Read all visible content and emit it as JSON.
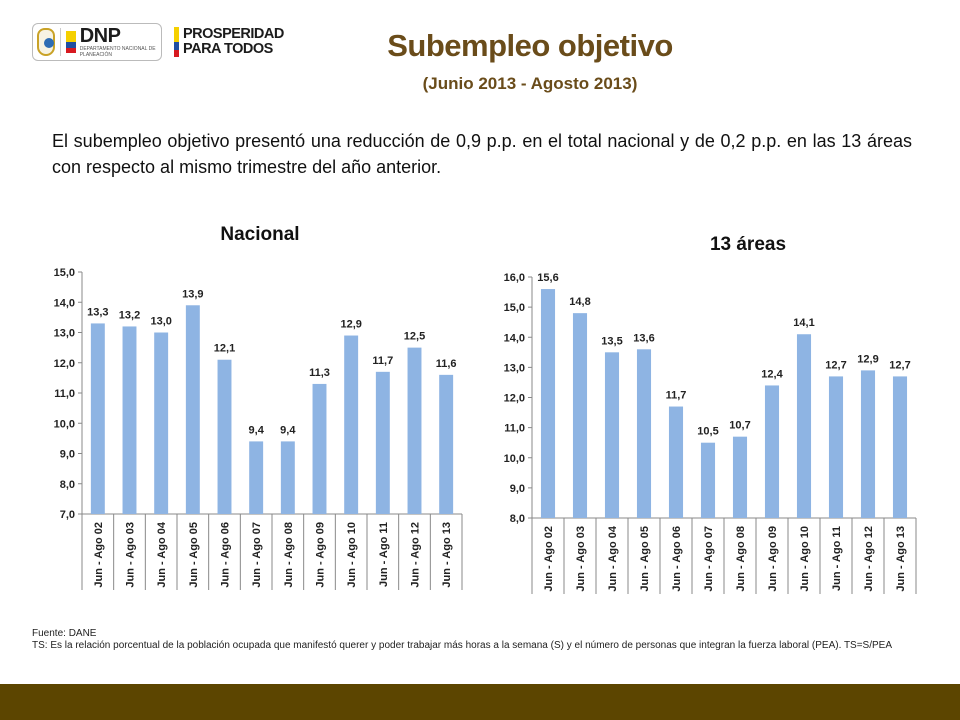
{
  "header": {
    "logo_main": "DNP",
    "logo_sub": "DEPARTAMENTO NACIONAL DE PLANEACIÓN",
    "slogan_line1": "PROSPERIDAD",
    "slogan_line2": "PARA TODOS",
    "title": "Subempleo objetivo",
    "subtitle": "(Junio 2013 - Agosto 2013)"
  },
  "description": "El subempleo objetivo presentó una reducción de 0,9 p.p. en el total nacional y de 0,2 p.p. en las 13 áreas con respecto al mismo trimestre del año anterior.",
  "footer": {
    "source": "Fuente: DANE",
    "note": "TS: Es la relación porcentual de la población ocupada que manifestó querer y poder trabajar más horas a la semana (S) y el número de personas que integran la fuerza laboral (PEA). TS=S/PEA"
  },
  "colors": {
    "title": "#6a4c1a",
    "bar": "#8eb4e3",
    "bottom_bar": "#5c4500"
  },
  "chart_data": [
    {
      "type": "bar",
      "title": "Nacional",
      "categories": [
        "Jun - Ago 02",
        "Jun - Ago 03",
        "Jun - Ago 04",
        "Jun - Ago 05",
        "Jun - Ago 06",
        "Jun - Ago 07",
        "Jun - Ago 08",
        "Jun - Ago 09",
        "Jun - Ago 10",
        "Jun - Ago 11",
        "Jun - Ago 12",
        "Jun - Ago 13"
      ],
      "values": [
        13.3,
        13.2,
        13.0,
        13.9,
        12.1,
        9.4,
        9.4,
        11.3,
        12.9,
        11.7,
        12.5,
        11.6
      ],
      "labels": [
        "13,3",
        "13,2",
        "13,0",
        "13,9",
        "12,1",
        "9,4",
        "9,4",
        "11,3",
        "12,9",
        "11,7",
        "12,5",
        "11,6"
      ],
      "ylim": [
        7.0,
        15.0
      ],
      "yticks": [
        "7,0",
        "8,0",
        "9,0",
        "10,0",
        "11,0",
        "12,0",
        "13,0",
        "14,0",
        "15,0"
      ],
      "grid": false
    },
    {
      "type": "bar",
      "title": "13 áreas",
      "categories": [
        "Jun - Ago 02",
        "Jun - Ago 03",
        "Jun - Ago 04",
        "Jun - Ago 05",
        "Jun - Ago 06",
        "Jun - Ago 07",
        "Jun - Ago 08",
        "Jun - Ago 09",
        "Jun - Ago 10",
        "Jun - Ago 11",
        "Jun - Ago 12",
        "Jun - Ago 13"
      ],
      "values": [
        15.6,
        14.8,
        13.5,
        13.6,
        11.7,
        10.5,
        10.7,
        12.4,
        14.1,
        12.7,
        12.9,
        12.7
      ],
      "labels": [
        "15,6",
        "14,8",
        "13,5",
        "13,6",
        "11,7",
        "10,5",
        "10,7",
        "12,4",
        "14,1",
        "12,7",
        "12,9",
        "12,7"
      ],
      "ylim": [
        8.0,
        16.0
      ],
      "yticks": [
        "8,0",
        "9,0",
        "10,0",
        "11,0",
        "12,0",
        "13,0",
        "14,0",
        "15,0",
        "16,0"
      ],
      "grid": false
    }
  ]
}
